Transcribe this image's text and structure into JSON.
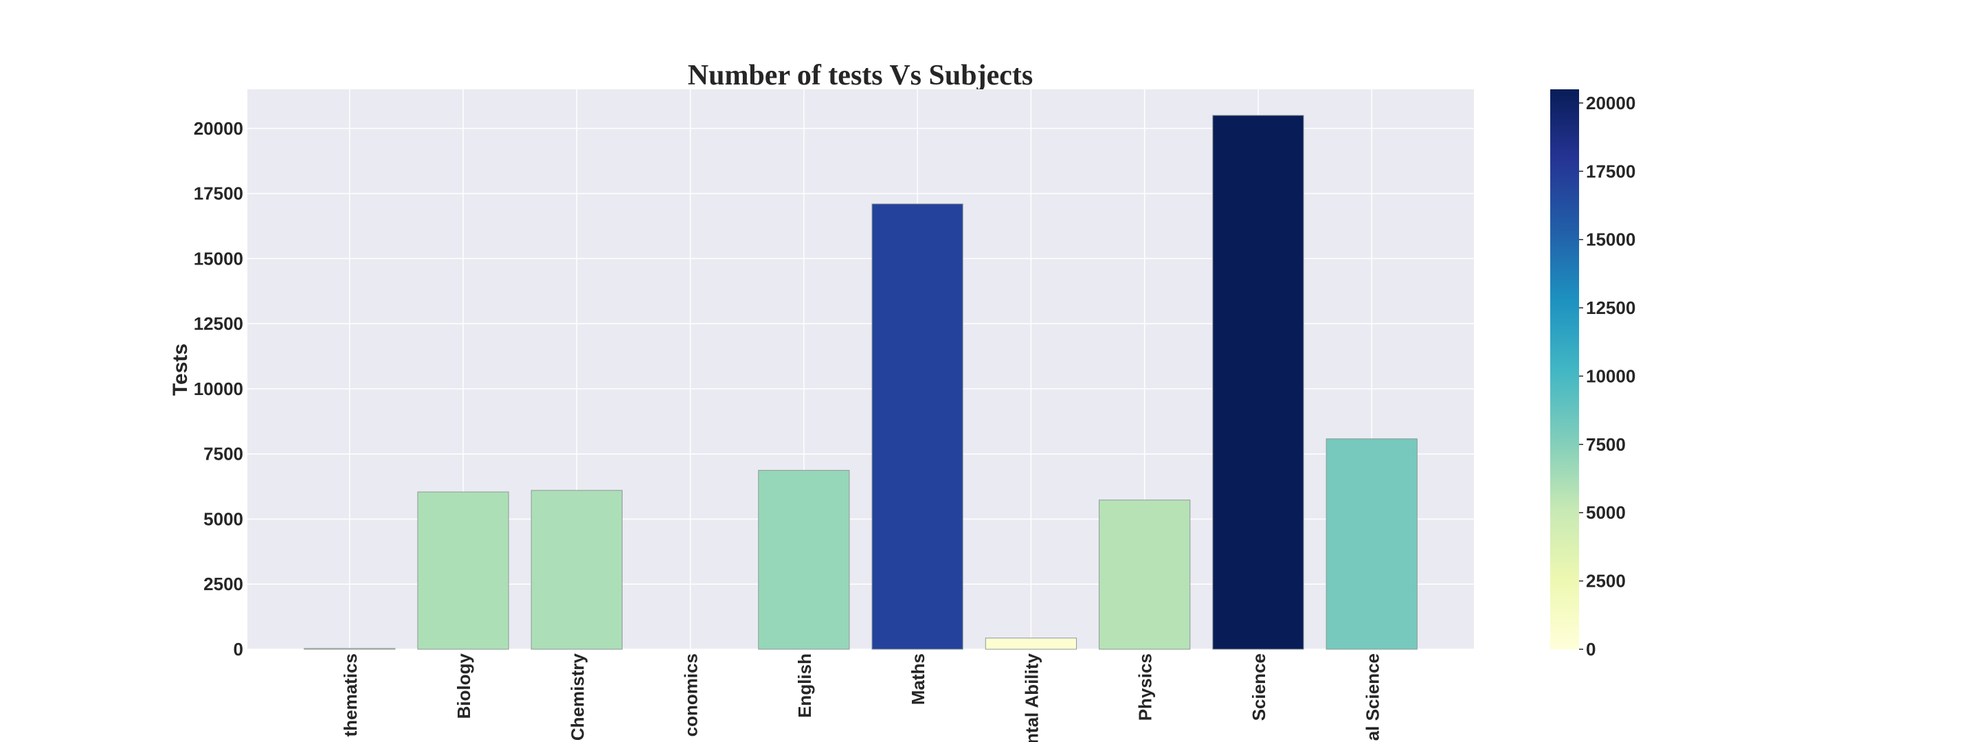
{
  "chart_data": {
    "type": "bar",
    "title": "Number of tests Vs Subjects",
    "xlabel": "",
    "ylabel": "Tests",
    "categories": [
      "Advanced Mathematics",
      "Biology",
      "Chemistry",
      "Economics",
      "English",
      "Maths",
      "Mental Ability",
      "Physics",
      "Science",
      "Social Science"
    ],
    "category_labels_visible": [
      "thematics",
      "Biology",
      "Chemistry",
      "conomics",
      "English",
      "Maths",
      "ntal Ability",
      "Physics",
      "Science",
      "al Science"
    ],
    "values": [
      30,
      6040,
      6100,
      0,
      6870,
      17100,
      430,
      5730,
      20500,
      8080
    ],
    "ylim": [
      0,
      21500
    ],
    "yticks": [
      "0",
      "2500",
      "5000",
      "7500",
      "10000",
      "12500",
      "15000",
      "17500",
      "20000"
    ],
    "colorbar": {
      "colormap": "YlGnBu",
      "range": [
        0,
        20500
      ],
      "ticks": [
        "0",
        "2500",
        "5000",
        "7500",
        "10000",
        "12500",
        "15000",
        "17500",
        "20000"
      ]
    },
    "grid": true,
    "background_color": "#eaeaf2",
    "grid_color": "#ffffff"
  }
}
